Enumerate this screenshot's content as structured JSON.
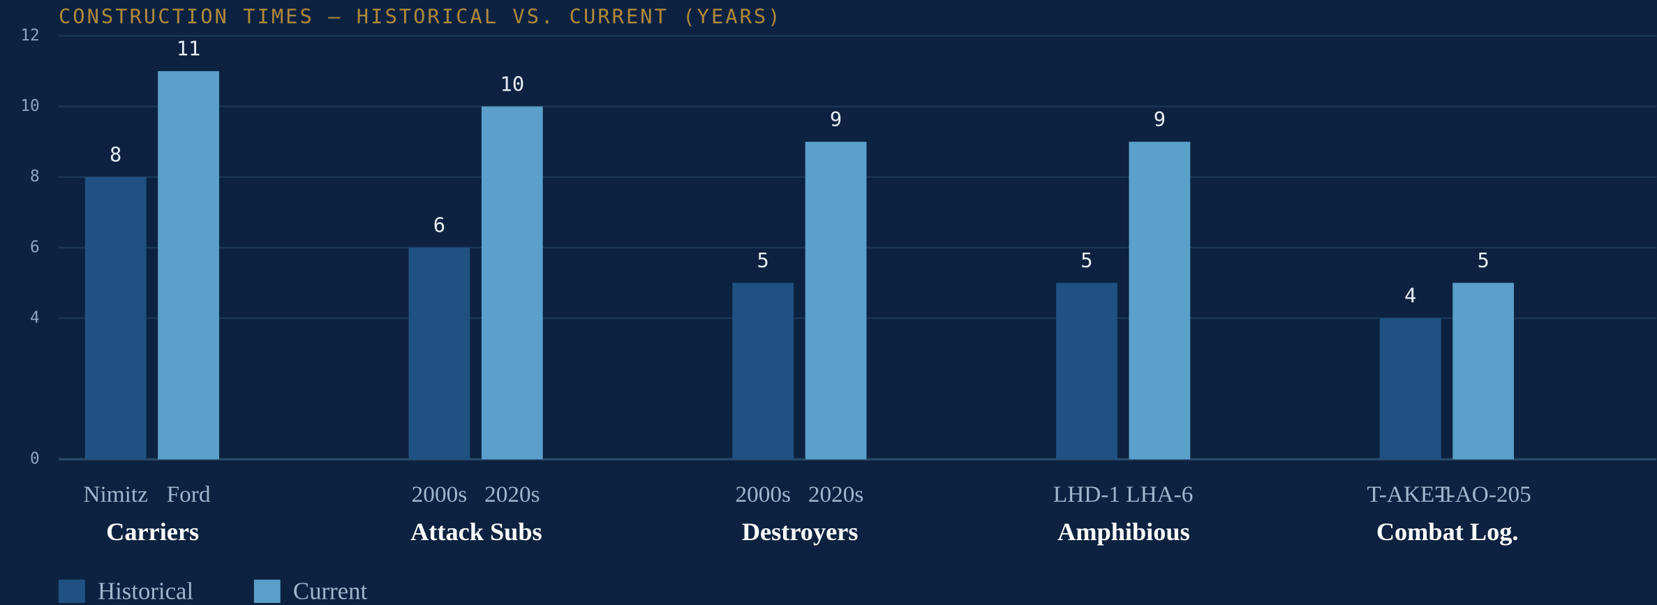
{
  "chart_data": {
    "type": "bar",
    "title": "CONSTRUCTION TIMES — HISTORICAL VS. CURRENT (YEARS)",
    "categories": [
      "Carriers",
      "Attack Subs",
      "Destroyers",
      "Amphibious",
      "Combat Log."
    ],
    "bar_labels": [
      [
        "Nimitz",
        "Ford"
      ],
      [
        "2000s",
        "2020s"
      ],
      [
        "2000s",
        "2020s"
      ],
      [
        "LHD-1",
        "LHA-6"
      ],
      [
        "T-AKE-1",
        "T-AO-205"
      ]
    ],
    "series": [
      {
        "name": "Historical",
        "color": "#1f5282",
        "values": [
          8,
          6,
          5,
          5,
          4
        ]
      },
      {
        "name": "Current",
        "color": "#5b9fcb",
        "values": [
          11,
          10,
          9,
          9,
          5
        ]
      }
    ],
    "ylim": [
      0,
      12
    ],
    "yticks": [
      0,
      4,
      6,
      8,
      10,
      12
    ],
    "grid": true
  }
}
